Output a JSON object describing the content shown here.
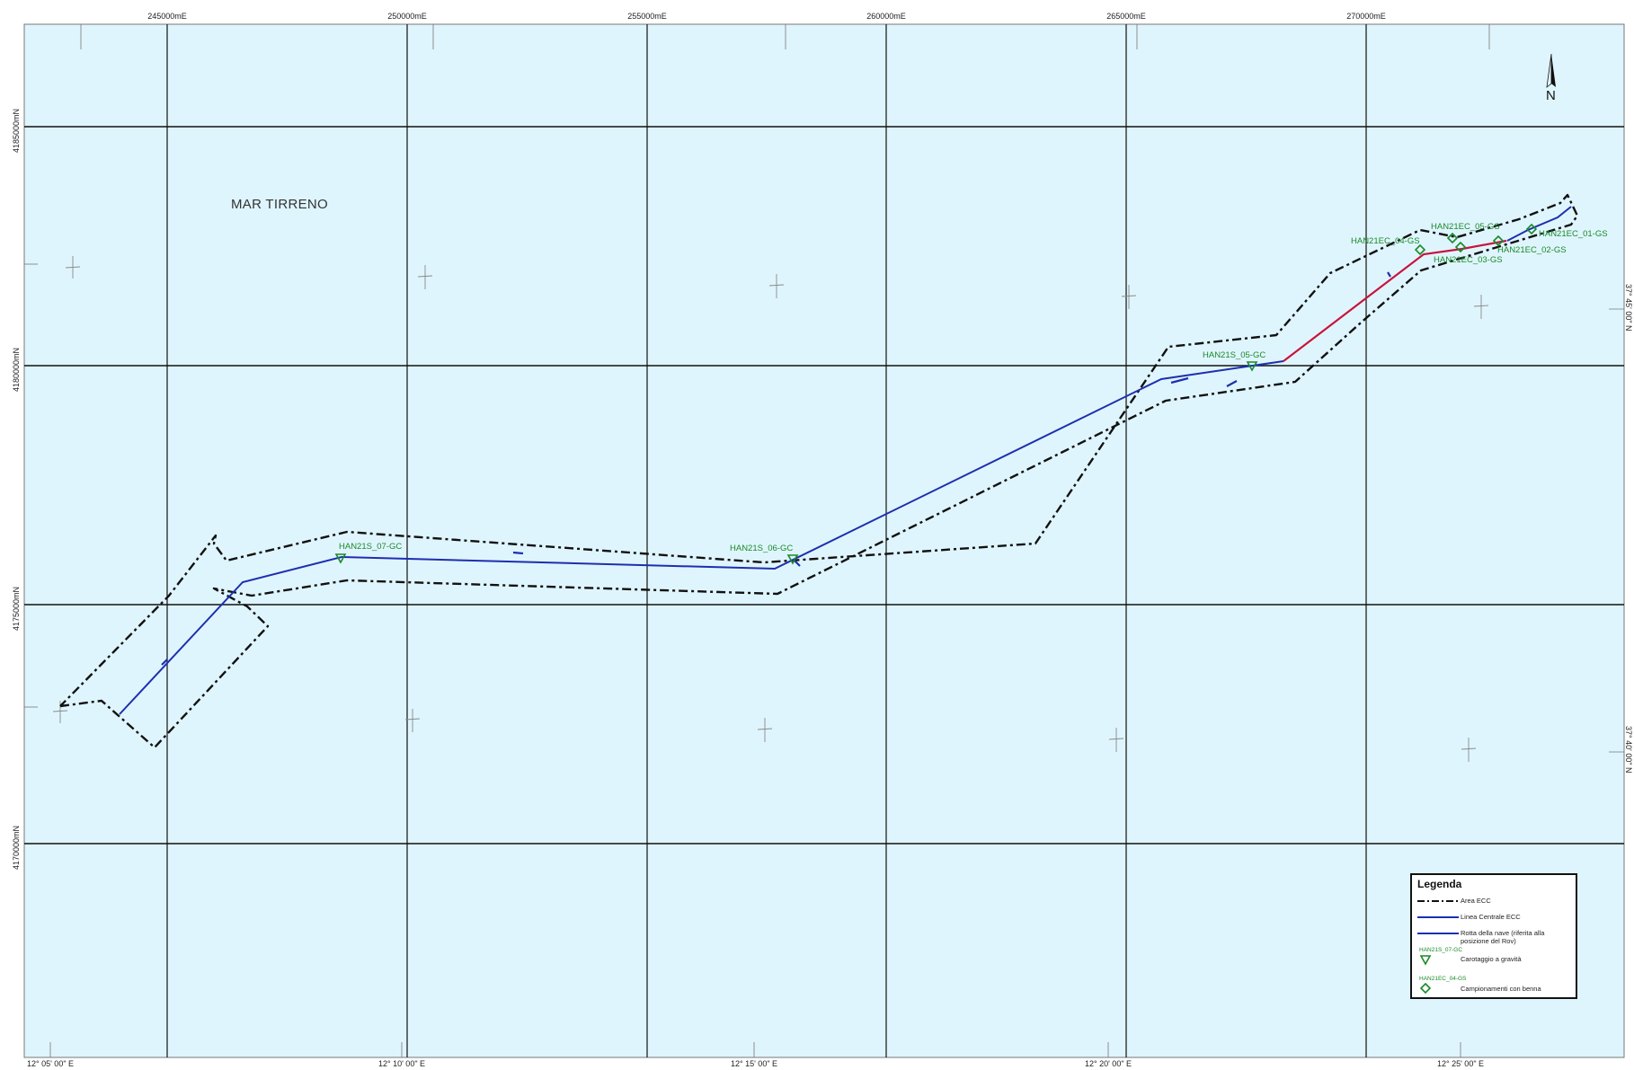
{
  "map": {
    "sea_label": "MAR TIRRENO",
    "north_label": "N",
    "easting_labels": [
      "245000mE",
      "250000mE",
      "255000mE",
      "260000mE",
      "265000mE",
      "270000mE"
    ],
    "northing_labels": [
      "4185000mN",
      "4180000mN",
      "4175000mN",
      "4170000mN"
    ],
    "longitude_labels": [
      "12° 05' 00\" E",
      "12° 10' 00\" E",
      "12° 15' 00\" E",
      "12° 20' 00\" E",
      "12° 25' 00\" E"
    ],
    "latitude_labels": [
      "37° 45' 00\" N",
      "37° 40' 00\" N"
    ],
    "stations": [
      {
        "label": "HAN21S_07-GC",
        "type": "gravity-core"
      },
      {
        "label": "HAN21S_06-GC",
        "type": "gravity-core"
      },
      {
        "label": "HAN21S_05-GC",
        "type": "gravity-core"
      },
      {
        "label": "HAN21EC_04-GS",
        "type": "grab-sample"
      },
      {
        "label": "HAN21EC_05-GS",
        "type": "grab-sample"
      },
      {
        "label": "HAN21EC_03-GS",
        "type": "grab-sample"
      },
      {
        "label": "HAN21EC_02-GS",
        "type": "grab-sample"
      },
      {
        "label": "HAN21EC_01-GS",
        "type": "grab-sample"
      }
    ],
    "colors": {
      "sea": "#dff5fd",
      "grid": "#000000",
      "centre_line": "#1e2fb0",
      "route_red": "#c8143c",
      "station": "#1a8a2a"
    }
  },
  "legend": {
    "title": "Legenda",
    "items": [
      {
        "label": "Area ECC",
        "symbol": "dashed-line"
      },
      {
        "label": "Linea Centrale ECC",
        "symbol": "blue-line"
      },
      {
        "label": "Rotta della nave (riferita alla posizione del Rov)",
        "symbol": "blue-line"
      },
      {
        "label": "Carotaggio a gravità",
        "symbol": "triangle-icon",
        "example": "HAN21S_07-GC"
      },
      {
        "label": "Campionamenti con benna",
        "symbol": "diamond-icon",
        "example": "HAN21EC_04-GS"
      }
    ]
  }
}
